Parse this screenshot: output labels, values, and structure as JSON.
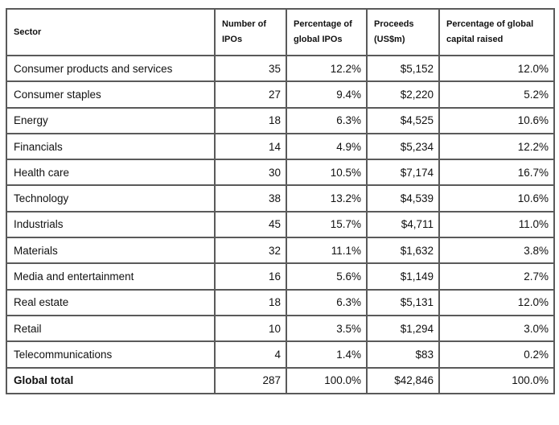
{
  "table": {
    "headers": [
      "Sector",
      "Number of IPOs",
      "Percentage of global IPOs",
      "Proceeds (US$m)",
      "Percentage of global capital raised"
    ],
    "header_lines": [
      [
        "Sector"
      ],
      [
        "Number of",
        "IPOs"
      ],
      [
        "Percentage of",
        "global IPOs"
      ],
      [
        "Proceeds",
        "(US$m)"
      ],
      [
        "Percentage of global",
        "capital raised"
      ]
    ],
    "rows": [
      [
        "Consumer products and services",
        "35",
        "12.2%",
        "$5,152",
        "12.0%"
      ],
      [
        "Consumer staples",
        "27",
        "9.4%",
        "$2,220",
        "5.2%"
      ],
      [
        "Energy",
        "18",
        "6.3%",
        "$4,525",
        "10.6%"
      ],
      [
        "Financials",
        "14",
        "4.9%",
        "$5,234",
        "12.2%"
      ],
      [
        "Health care",
        "30",
        "10.5%",
        "$7,174",
        "16.7%"
      ],
      [
        "Technology",
        "38",
        "13.2%",
        "$4,539",
        "10.6%"
      ],
      [
        "Industrials",
        "45",
        "15.7%",
        "$4,711",
        "11.0%"
      ],
      [
        "Materials",
        "32",
        "11.1%",
        "$1,632",
        "3.8%"
      ],
      [
        "Media and entertainment",
        "16",
        "5.6%",
        "$1,149",
        "2.7%"
      ],
      [
        "Real estate",
        "18",
        "6.3%",
        "$5,131",
        "12.0%"
      ],
      [
        "Retail",
        "10",
        "3.5%",
        "$1,294",
        "3.0%"
      ],
      [
        "Telecommunications",
        "4",
        "1.4%",
        "$83",
        "0.2%"
      ]
    ],
    "total": [
      "Global total",
      "287",
      "100.0%",
      "$42,846",
      "100.0%"
    ]
  }
}
